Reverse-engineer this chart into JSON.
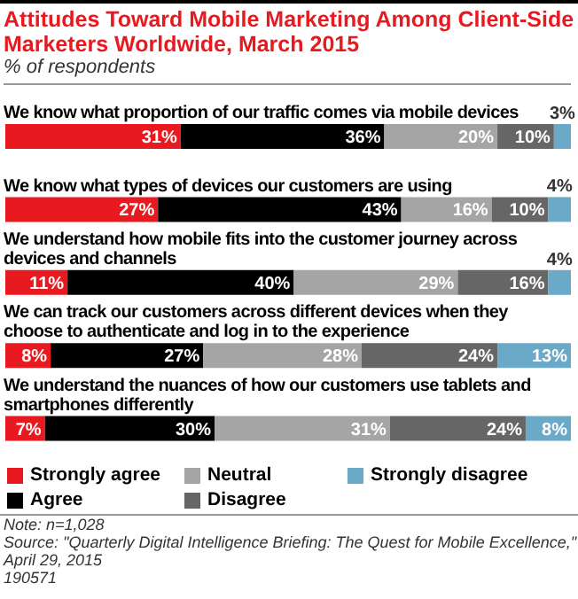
{
  "chart_data": {
    "type": "bar",
    "orientation": "horizontal",
    "stacked": true,
    "title": "Attitudes Toward Mobile Marketing Among Client-Side Marketers Worldwide, March 2015",
    "subtitle": "% of respondents",
    "categories": [
      "We know what proportion of our traffic comes via mobile devices",
      "We know what types of devices our customers are using",
      "We understand how mobile fits into the customer journey across devices and channels",
      "We can track our customers across different devices when they choose to authenticate and log in to the experience",
      "We understand the nuances of how our customers use tablets and smartphones differently"
    ],
    "series": [
      {
        "name": "Strongly agree",
        "color": "#e8191f",
        "values": [
          31,
          27,
          11,
          8,
          7
        ],
        "value_labels": [
          "31%",
          "27%",
          "11%",
          "8%",
          "7%"
        ]
      },
      {
        "name": "Agree",
        "color": "#000000",
        "values": [
          36,
          43,
          40,
          27,
          30
        ],
        "value_labels": [
          "36%",
          "43%",
          "40%",
          "27%",
          "30%"
        ]
      },
      {
        "name": "Neutral",
        "color": "#a5a5a5",
        "values": [
          20,
          16,
          29,
          28,
          31
        ],
        "value_labels": [
          "20%",
          "16%",
          "29%",
          "28%",
          "31%"
        ]
      },
      {
        "name": "Disagree",
        "color": "#666666",
        "values": [
          10,
          10,
          16,
          24,
          24
        ],
        "value_labels": [
          "10%",
          "10%",
          "16%",
          "24%",
          "24%"
        ]
      },
      {
        "name": "Strongly disagree",
        "color": "#6aaac8",
        "values": [
          3,
          4,
          4,
          13,
          8
        ],
        "value_labels": [
          "3%",
          "4%",
          "4%",
          "13%",
          "8%"
        ]
      }
    ],
    "legend": "bottom",
    "annotations": [
      "Note: n=1,028",
      "Source: \"Quarterly Digital Intelligence Briefing: The Quest for Mobile Excellence,\" April 29, 2015",
      "190571"
    ]
  }
}
